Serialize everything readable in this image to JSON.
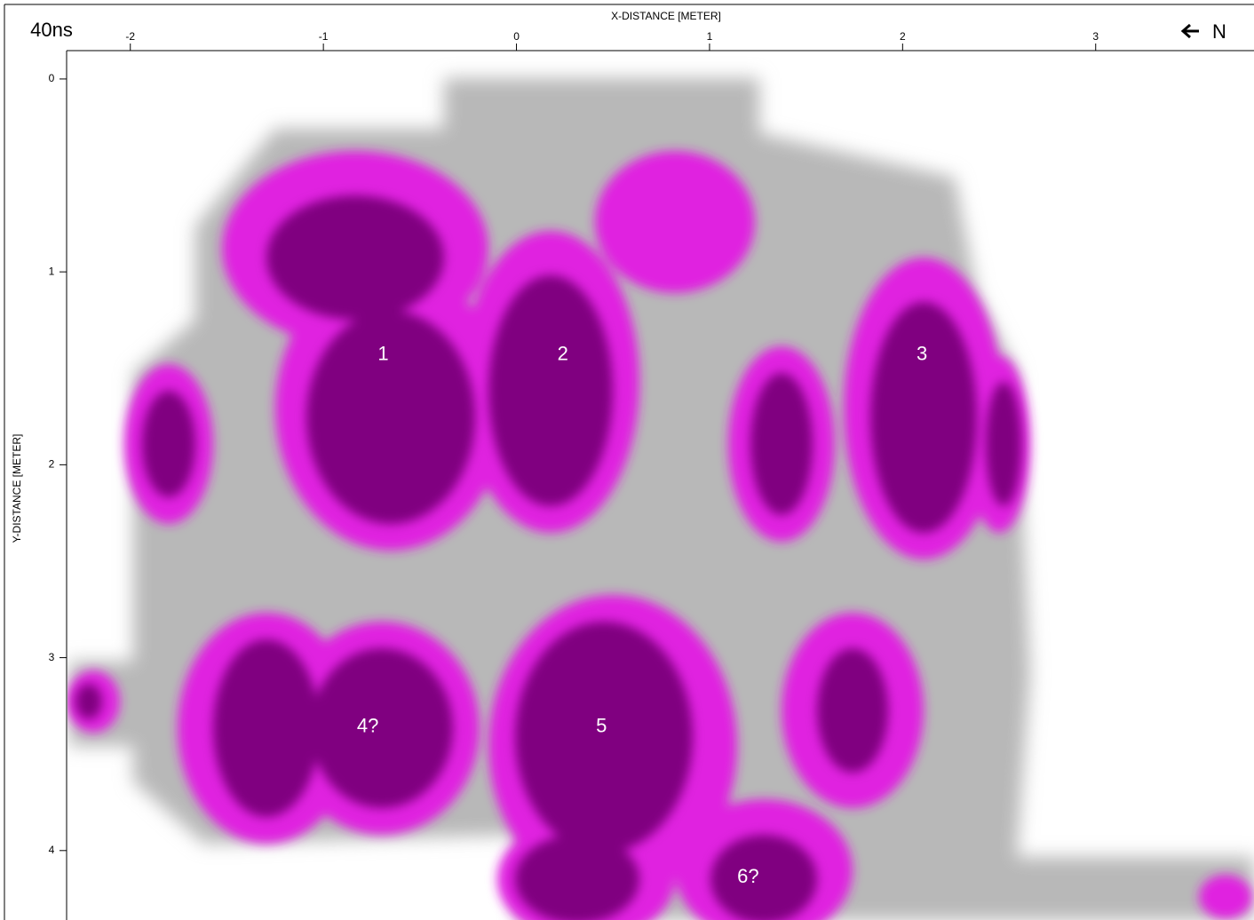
{
  "chart_data": {
    "type": "heatmap",
    "title": "40ns",
    "x_label": "X-DISTANCE [METER]",
    "y_label": "Y-DISTANCE [METER]",
    "north_label": "N",
    "xlim": [
      -2.33,
      3.82
    ],
    "xticks": [
      -2,
      -1,
      0,
      1,
      2,
      3
    ],
    "ylim": [
      -0.147,
      4.36
    ],
    "yticks": [
      0,
      1,
      2,
      3,
      4
    ],
    "annotations": [
      {
        "text": "1",
        "x": -0.69,
        "y": 1.43
      },
      {
        "text": "2",
        "x": 0.24,
        "y": 1.43
      },
      {
        "text": "3",
        "x": 2.1,
        "y": 1.43
      },
      {
        "text": "4?",
        "x": -0.77,
        "y": 3.36
      },
      {
        "text": "5",
        "x": 0.44,
        "y": 3.36
      },
      {
        "text": "6?",
        "x": 1.2,
        "y": 4.14
      }
    ]
  }
}
